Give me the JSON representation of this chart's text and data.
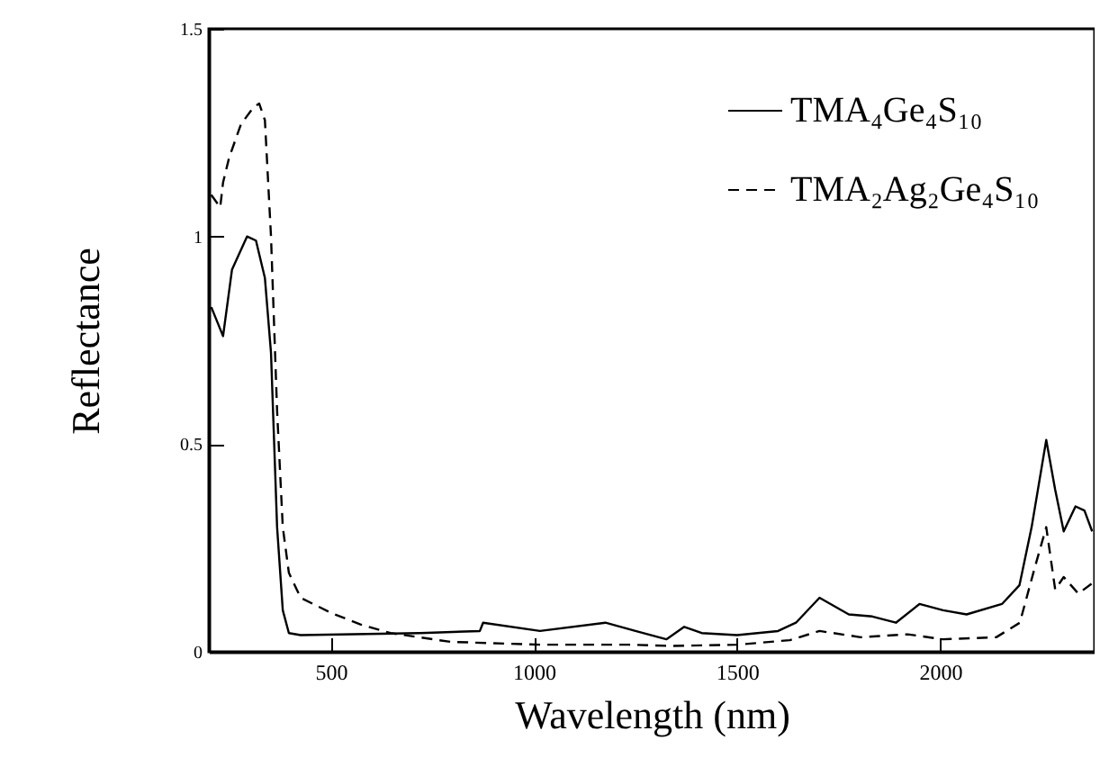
{
  "chart_data": {
    "type": "line",
    "xlabel": "Wavelength (nm)",
    "ylabel": "Reflectance",
    "xlim": [
      200,
      2380
    ],
    "ylim": [
      0,
      1.5
    ],
    "xticks": [
      500,
      1000,
      1500,
      2000
    ],
    "yticks": [
      0,
      0.5,
      1,
      1.5
    ],
    "grid": false,
    "legend": "top right",
    "series": [
      {
        "name": "TMA₄Ge₄S₁₀",
        "color": "#000000",
        "line_style": "solid",
        "x": [
          206,
          235,
          257,
          294,
          316,
          338,
          353,
          368,
          382,
          397,
          426,
          720,
          867,
          875,
          1015,
          1176,
          1250,
          1326,
          1370,
          1413,
          1500,
          1601,
          1645,
          1703,
          1775,
          1833,
          1891,
          1949,
          2007,
          2065,
          2152,
          2195,
          2225,
          2261,
          2283,
          2304,
          2333,
          2355,
          2374
        ],
        "values": [
          0.83,
          0.76,
          0.92,
          1.0,
          0.99,
          0.9,
          0.72,
          0.3,
          0.1,
          0.045,
          0.04,
          0.045,
          0.05,
          0.07,
          0.05,
          0.07,
          0.05,
          0.03,
          0.06,
          0.045,
          0.04,
          0.05,
          0.07,
          0.13,
          0.09,
          0.085,
          0.07,
          0.115,
          0.1,
          0.09,
          0.115,
          0.16,
          0.3,
          0.51,
          0.39,
          0.29,
          0.35,
          0.34,
          0.29
        ]
      },
      {
        "name": "TMA₂Ag₂Ge₄S₁₀",
        "color": "#000000",
        "line_style": "dashed",
        "x": [
          206,
          228,
          235,
          250,
          279,
          309,
          324,
          338,
          353,
          368,
          382,
          397,
          426,
          500,
          573,
          647,
          794,
          1015,
          1235,
          1341,
          1500,
          1630,
          1703,
          1804,
          1920,
          2007,
          2138,
          2196,
          2232,
          2261,
          2283,
          2304,
          2340,
          2374
        ],
        "values": [
          1.1,
          1.07,
          1.13,
          1.19,
          1.27,
          1.31,
          1.32,
          1.28,
          1.0,
          0.58,
          0.3,
          0.19,
          0.13,
          0.094,
          0.066,
          0.045,
          0.024,
          0.017,
          0.017,
          0.014,
          0.017,
          0.028,
          0.05,
          0.035,
          0.042,
          0.03,
          0.035,
          0.07,
          0.2,
          0.3,
          0.15,
          0.18,
          0.14,
          0.165
        ]
      }
    ]
  }
}
